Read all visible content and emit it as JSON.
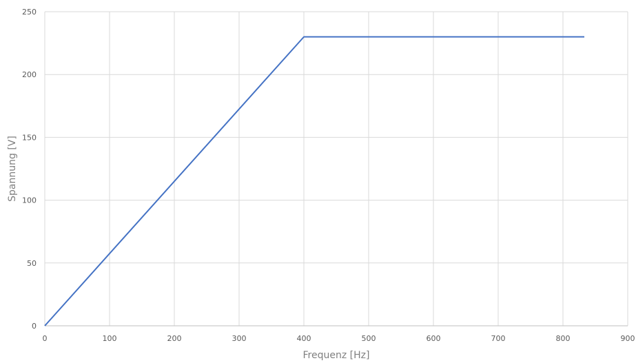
{
  "chart_data": {
    "type": "line",
    "title": "",
    "xlabel": "Frequenz [Hz]",
    "ylabel": "Spannung [V]",
    "xlim": [
      0,
      900
    ],
    "ylim": [
      0,
      250
    ],
    "x_ticks": [
      "0",
      "100",
      "200",
      "300",
      "400",
      "500",
      "600",
      "700",
      "800",
      "900"
    ],
    "y_ticks": [
      "0",
      "50",
      "100",
      "150",
      "200",
      "250"
    ],
    "grid": true,
    "legend": "none",
    "series": [
      {
        "color": "#4472c4",
        "points": [
          {
            "x": 0,
            "y": 0
          },
          {
            "x": 400,
            "y": 230
          },
          {
            "x": 833,
            "y": 230
          }
        ]
      }
    ]
  }
}
